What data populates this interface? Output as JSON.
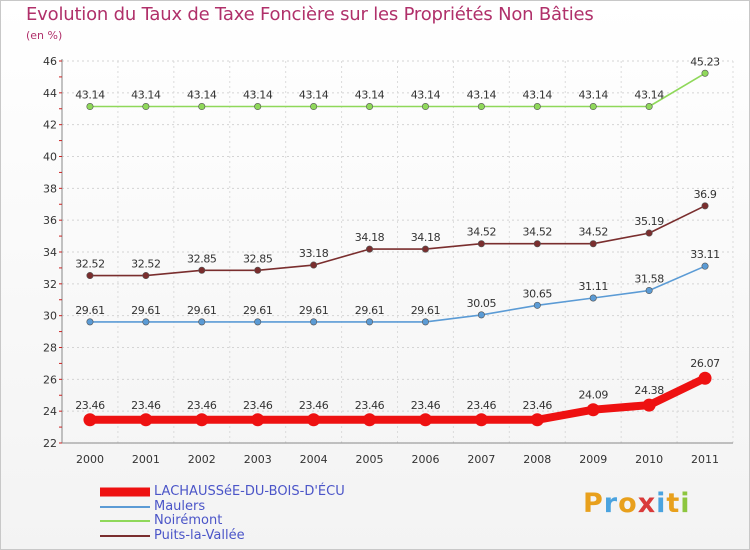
{
  "header": {
    "title": "Evolution du Taux de Taxe Foncière sur les Propriétés Non Bâties",
    "unit": "(en %)"
  },
  "logo": {
    "text": "Proxiti",
    "letters": [
      {
        "ch": "P",
        "color": "#e8a01c"
      },
      {
        "ch": "r",
        "color": "#4aa3df"
      },
      {
        "ch": "o",
        "color": "#e8a01c"
      },
      {
        "ch": "x",
        "color": "#d93a3a"
      },
      {
        "ch": "i",
        "color": "#4aa3df"
      },
      {
        "ch": "t",
        "color": "#e8a01c"
      },
      {
        "ch": "i",
        "color": "#8dc63f"
      }
    ]
  },
  "chart_data": {
    "type": "line",
    "title": "Evolution du Taux de Taxe Foncière sur les Propriétés Non Bâties",
    "ylabel": "(en %)",
    "xlabel": "",
    "ylim": [
      22,
      46
    ],
    "yticks": [
      22,
      24,
      26,
      28,
      30,
      32,
      34,
      36,
      38,
      40,
      42,
      44,
      46
    ],
    "grid": true,
    "legend_position": "bottom-left",
    "x": [
      "2000",
      "2001",
      "2002",
      "2003",
      "2004",
      "2005",
      "2006",
      "2007",
      "2008",
      "2009",
      "2010",
      "2011"
    ],
    "series": [
      {
        "name": "LACHAUSSéE-DU-BOIS-D'ÉCU",
        "color": "#ee1111",
        "thick": true,
        "values": [
          23.46,
          23.46,
          23.46,
          23.46,
          23.46,
          23.46,
          23.46,
          23.46,
          23.46,
          24.09,
          24.38,
          26.07
        ],
        "labels": [
          "23.46",
          "23.46",
          "23.46",
          "23.46",
          "23.46",
          "23.46",
          "23.46",
          "23.46",
          "23.46",
          "24.09",
          "24.38",
          "26.07"
        ]
      },
      {
        "name": "Maulers",
        "color": "#5b9bd5",
        "thick": false,
        "values": [
          29.61,
          29.61,
          29.61,
          29.61,
          29.61,
          29.61,
          29.61,
          30.05,
          30.65,
          31.11,
          31.58,
          33.11
        ],
        "labels": [
          "29.61",
          "29.61",
          "29.61",
          "29.61",
          "29.61",
          "29.61",
          "29.61",
          "30.05",
          "30.65",
          "31.11",
          "31.58",
          "33.11"
        ]
      },
      {
        "name": "Noirémont",
        "color": "#8fd85a",
        "thick": false,
        "values": [
          43.14,
          43.14,
          43.14,
          43.14,
          43.14,
          43.14,
          43.14,
          43.14,
          43.14,
          43.14,
          43.14,
          45.23
        ],
        "labels": [
          "43.14",
          "43.14",
          "43.14",
          "43.14",
          "43.14",
          "43.14",
          "43.14",
          "43.14",
          "43.14",
          "43.14",
          "43.14",
          "45.23"
        ]
      },
      {
        "name": "Puits-la-Vallée",
        "color": "#7a2e2e",
        "thick": false,
        "values": [
          32.52,
          32.52,
          32.85,
          32.85,
          33.18,
          34.18,
          34.18,
          34.52,
          34.52,
          34.52,
          35.19,
          36.9
        ],
        "labels": [
          "32.52",
          "32.52",
          "32.85",
          "32.85",
          "33.18",
          "34.18",
          "34.18",
          "34.52",
          "34.52",
          "34.52",
          "35.19",
          "36.9"
        ]
      }
    ]
  }
}
